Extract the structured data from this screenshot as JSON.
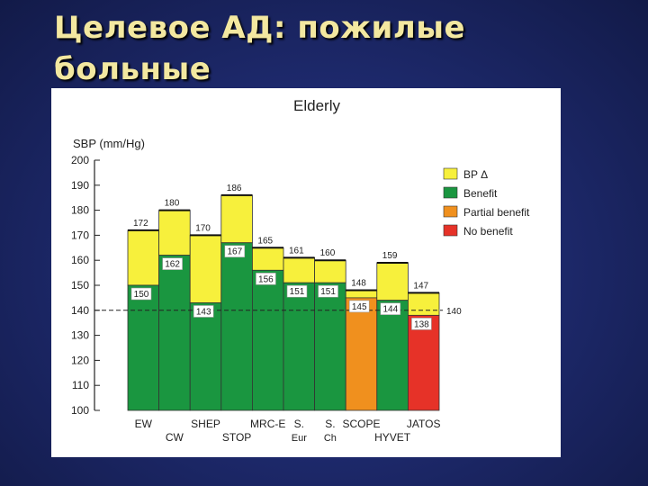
{
  "slide": {
    "title_line1": "Целевое АД: пожилые",
    "title_line2": "больные"
  },
  "colors": {
    "bp_delta": "#f7f03c",
    "benefit": "#1a9640",
    "partial_benefit": "#f0901e",
    "no_benefit": "#e63228",
    "background": "#1e2a6e",
    "title_text": "#f3e8a0"
  },
  "chart_data": {
    "type": "bar",
    "title": "Elderly",
    "ylabel": "SBP (mm/Hg)",
    "ylim": [
      100,
      200
    ],
    "yticks": [
      100,
      110,
      120,
      130,
      140,
      150,
      160,
      170,
      180,
      190,
      200
    ],
    "grid": false,
    "legend_position": "right",
    "legend": [
      {
        "key": "bp_delta",
        "label": "BP Δ"
      },
      {
        "key": "benefit",
        "label": "Benefit"
      },
      {
        "key": "partial_benefit",
        "label": "Partial benefit"
      },
      {
        "key": "no_benefit",
        "label": "No benefit"
      }
    ],
    "reference_line": {
      "value": 140,
      "label": "140"
    },
    "bars": [
      {
        "name": "EW",
        "before": 172,
        "after": 150,
        "outcome": "benefit",
        "label_row": "top"
      },
      {
        "name": "CW",
        "before": 180,
        "after": 162,
        "outcome": "benefit",
        "label_row": "bottom"
      },
      {
        "name": "SHEP",
        "before": 170,
        "after": 143,
        "outcome": "benefit",
        "label_row": "top"
      },
      {
        "name": "STOP",
        "before": 186,
        "after": 167,
        "outcome": "benefit",
        "label_row": "bottom"
      },
      {
        "name": "MRC-E",
        "before": 165,
        "after": 156,
        "outcome": "benefit",
        "label_row": "top"
      },
      {
        "name": "S. Eur",
        "before": 161,
        "after": 151,
        "outcome": "benefit",
        "label_row": "split"
      },
      {
        "name": "S. Ch",
        "before": 160,
        "after": 151,
        "outcome": "benefit",
        "label_row": "split"
      },
      {
        "name": "SCOPE",
        "before": 148,
        "after": 145,
        "outcome": "partial_benefit",
        "label_row": "top"
      },
      {
        "name": "HYVET",
        "before": 159,
        "after": 144,
        "outcome": "benefit",
        "label_row": "bottom"
      },
      {
        "name": "JATOS",
        "before": 147,
        "after": 138,
        "outcome": "no_benefit",
        "label_row": "top"
      }
    ]
  }
}
